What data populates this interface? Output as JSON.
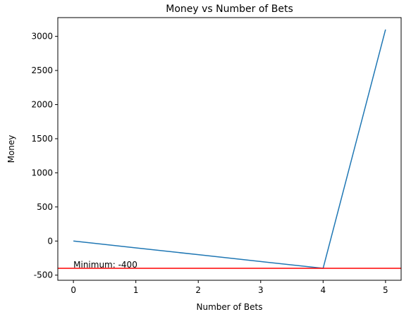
{
  "chart_data": {
    "type": "line",
    "title": "Money vs Number of Bets",
    "xlabel": "Number of Bets",
    "ylabel": "Money",
    "x": [
      0,
      1,
      2,
      3,
      4,
      5
    ],
    "series": [
      {
        "values": [
          0,
          -100,
          -200,
          -300,
          -400,
          3100
        ],
        "color": "#1f77b4"
      }
    ],
    "xlim": [
      -0.25,
      5.25
    ],
    "ylim": [
      -575,
      3275
    ],
    "xticks": [
      0,
      1,
      2,
      3,
      4,
      5
    ],
    "yticks": [
      -500,
      0,
      500,
      1000,
      1500,
      2000,
      2500,
      3000
    ],
    "grid": false,
    "hline": {
      "y": -400,
      "color": "#ff0000"
    },
    "annotation": {
      "text": "Minimum: -400",
      "x": 0,
      "y": -400
    }
  }
}
